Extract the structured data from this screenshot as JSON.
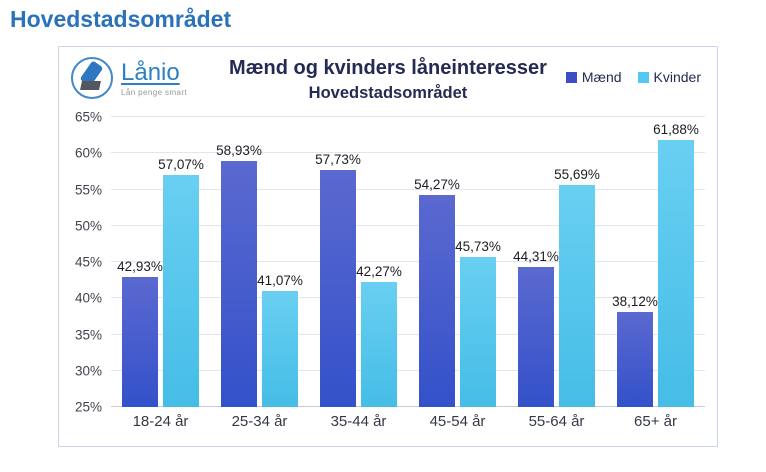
{
  "page": {
    "title": "Hovedstadsområdet"
  },
  "card": {
    "logo": {
      "name": "Lånio",
      "tagline": "Lån penge smart"
    },
    "title": "Mænd og kvinders låneinteresser",
    "subtitle": "Hovedstadsområdet"
  },
  "colors": {
    "page_title": "#2a72b9",
    "chart_title": "#252a52",
    "card_border": "#ccd5e8",
    "gridline": "#e2e6f3",
    "baseline": "#c6ccdb"
  },
  "chart_data": {
    "type": "bar",
    "title": "Mænd og kvinders låneinteresser",
    "subtitle": "Hovedstadsområdet",
    "categories": [
      "18-24 år",
      "25-34 år",
      "35-44 år",
      "45-54 år",
      "55-64 år",
      "65+ år"
    ],
    "series": [
      {
        "key": "maend",
        "name": "Mænd",
        "values": [
          42.93,
          58.93,
          57.73,
          54.27,
          44.31,
          38.12
        ],
        "labels": [
          "42,93%",
          "58,93%",
          "57,73%",
          "54,27%",
          "44,31%",
          "38,12%"
        ],
        "color_top": "#5b69d0",
        "color_bottom": "#3351c9",
        "legend_color": "#3c4ec4"
      },
      {
        "key": "kvinder",
        "name": "Kvinder",
        "values": [
          57.07,
          41.07,
          42.27,
          45.73,
          55.69,
          61.88
        ],
        "labels": [
          "57,07%",
          "41,07%",
          "42,27%",
          "45,73%",
          "55,69%",
          "61,88%"
        ],
        "color_top": "#69cff2",
        "color_bottom": "#45bde6",
        "legend_color": "#52c9f1"
      }
    ],
    "ylim": [
      25,
      65
    ],
    "yticks": [
      {
        "value": 65,
        "label": "65%"
      },
      {
        "value": 60,
        "label": "60%"
      },
      {
        "value": 55,
        "label": "55%"
      },
      {
        "value": 50,
        "label": "50%"
      },
      {
        "value": 45,
        "label": "45%"
      },
      {
        "value": 40,
        "label": "40%"
      },
      {
        "value": 35,
        "label": "35%"
      },
      {
        "value": 30,
        "label": "30%"
      },
      {
        "value": 25,
        "label": "25%"
      }
    ],
    "grid": true,
    "legend_position": "top-right"
  }
}
